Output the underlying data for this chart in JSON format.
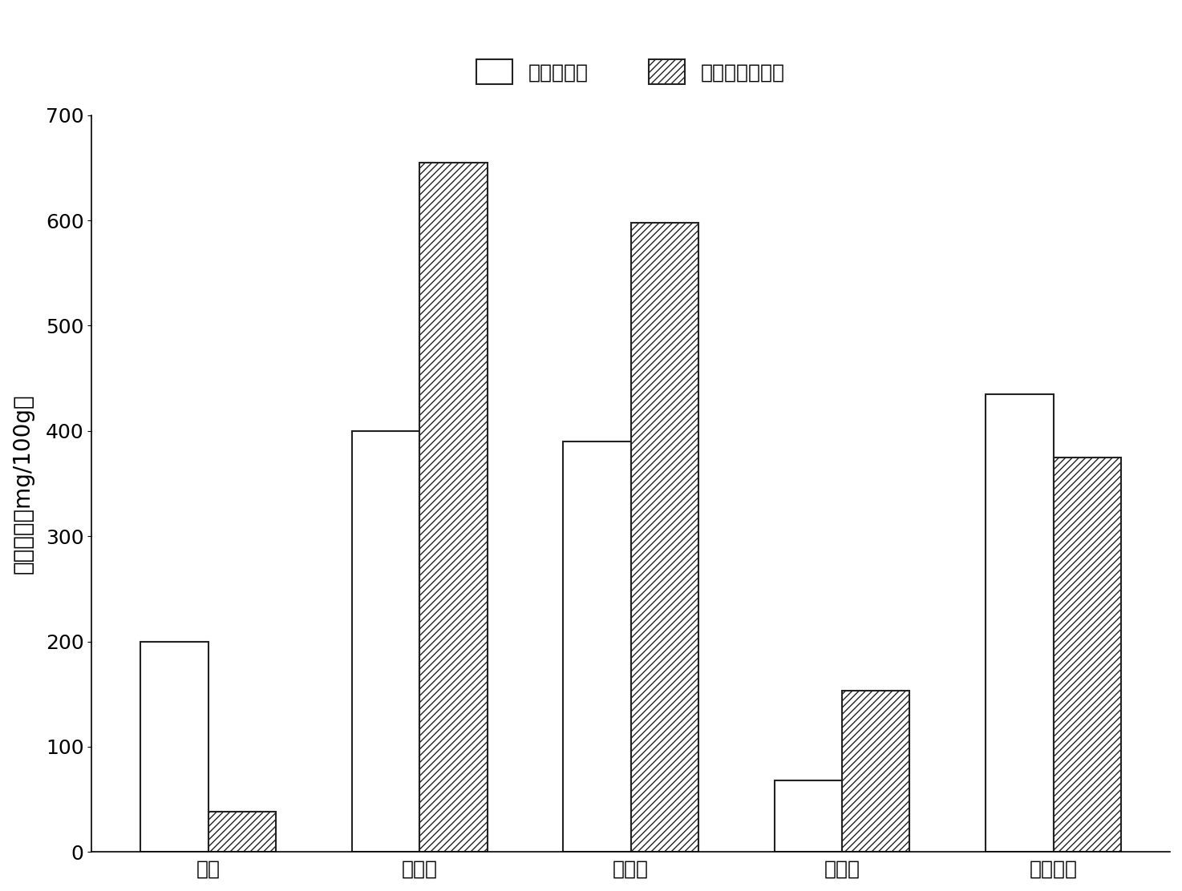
{
  "categories": [
    "芦丁",
    "杨梅霐",
    "槲皮素",
    "山奈酚",
    "异鼠李素"
  ],
  "control_values": [
    200,
    400,
    390,
    68,
    435
  ],
  "hydrolyzed_values": [
    38,
    655,
    598,
    153,
    375
  ],
  "ylabel": "黄酮含量（mg/100g）",
  "ylim": [
    0,
    700
  ],
  "yticks": [
    0,
    100,
    200,
    300,
    400,
    500,
    600,
    700
  ],
  "legend_control": "对照组蜂胶",
  "legend_hydrolyzed": "柚苷酶水解蜂胶",
  "bar_width": 0.32,
  "control_color": "white",
  "control_edgecolor": "#222222",
  "hydrolyzed_edgecolor": "#222222",
  "background_color": "white",
  "hatch_pattern": "////",
  "label_fontsize": 20,
  "tick_fontsize": 18,
  "legend_fontsize": 18
}
